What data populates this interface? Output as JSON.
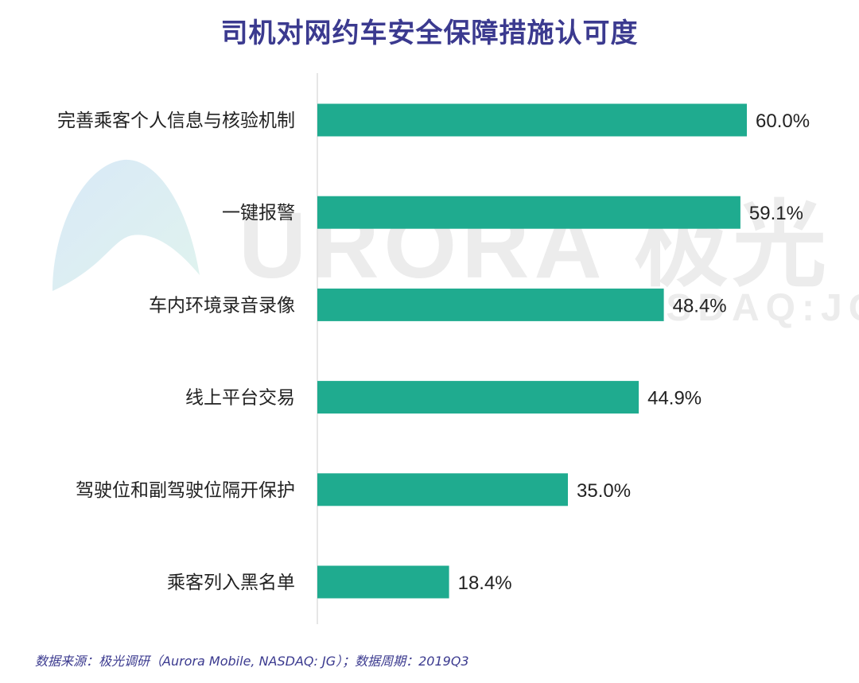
{
  "title": "司机对网约车安全保障措施认可度",
  "source": "数据来源：极光调研（Aurora Mobile, NASDAQ: JG）；数据周期：2019Q3",
  "watermark": {
    "brand": "URORA 极光",
    "ticker": "NASDAQ:JG"
  },
  "colors": {
    "bar": "#1fab8f",
    "title": "#3b3a8f",
    "axis": "#dddddd",
    "label": "#222222"
  },
  "chart_data": {
    "type": "bar",
    "orientation": "horizontal",
    "categories": [
      "完善乘客个人信息与核验机制",
      "一键报警",
      "车内环境录音录像",
      "线上平台交易",
      "驾驶位和副驾驶位隔开保护",
      "乘客列入黑名单"
    ],
    "values": [
      60.0,
      59.1,
      48.4,
      44.9,
      35.0,
      18.4
    ],
    "value_labels": [
      "60.0%",
      "59.1%",
      "48.4%",
      "44.9%",
      "35.0%",
      "18.4%"
    ],
    "xlim": [
      0,
      60
    ],
    "grid": false,
    "legend": "none"
  }
}
